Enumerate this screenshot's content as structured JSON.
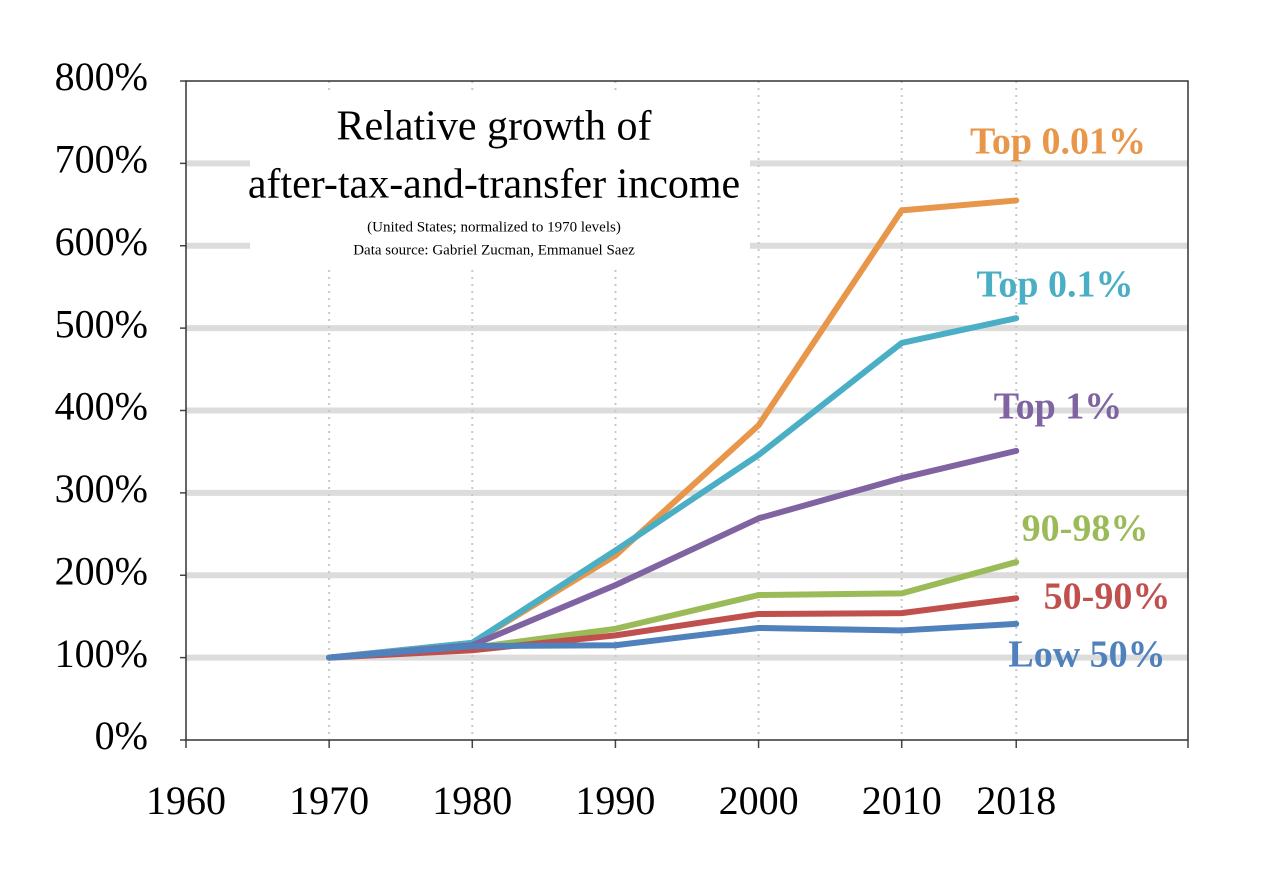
{
  "chart_data": {
    "type": "line",
    "title": [
      "Relative growth of",
      "after-tax-and-transfer income"
    ],
    "subtitle": "(United States;  normalized to 1970 levels)",
    "source": "Data source: Gabriel Zucman, Emmanuel Saez",
    "x": [
      1970,
      1980,
      1990,
      2000,
      2010,
      2018
    ],
    "series": [
      {
        "name": "Top 0.01%",
        "color": "#e8964a",
        "values": [
          100,
          118,
          224,
          382,
          643,
          655
        ]
      },
      {
        "name": "Top 0.1%",
        "color": "#4aaec4",
        "values": [
          100,
          118,
          230,
          346,
          482,
          512
        ]
      },
      {
        "name": "Top 1%",
        "color": "#8064a2",
        "values": [
          100,
          115,
          188,
          269,
          318,
          351
        ]
      },
      {
        "name": "90-98%",
        "color": "#9bbb59",
        "values": [
          100,
          112,
          135,
          176,
          178,
          216
        ]
      },
      {
        "name": "50-90%",
        "color": "#c0504d",
        "values": [
          100,
          109,
          127,
          153,
          154,
          172
        ]
      },
      {
        "name": "Low 50%",
        "color": "#4f81bd",
        "values": [
          100,
          114,
          115,
          136,
          133,
          141
        ]
      }
    ],
    "xlim": [
      1960,
      2030
    ],
    "xticks": [
      1960,
      1970,
      1980,
      1990,
      2000,
      2010,
      2018
    ],
    "ylim": [
      0,
      800
    ],
    "yticks": [
      {
        "value": 0,
        "label": "0%"
      },
      {
        "value": 100,
        "label": "100%"
      },
      {
        "value": 200,
        "label": "200%"
      },
      {
        "value": 300,
        "label": "300%"
      },
      {
        "value": 400,
        "label": "400%"
      },
      {
        "value": 500,
        "label": "500%"
      },
      {
        "value": 600,
        "label": "600%"
      },
      {
        "value": 700,
        "label": "700%"
      },
      {
        "value": 800,
        "label": "800%"
      }
    ],
    "grid": true
  }
}
